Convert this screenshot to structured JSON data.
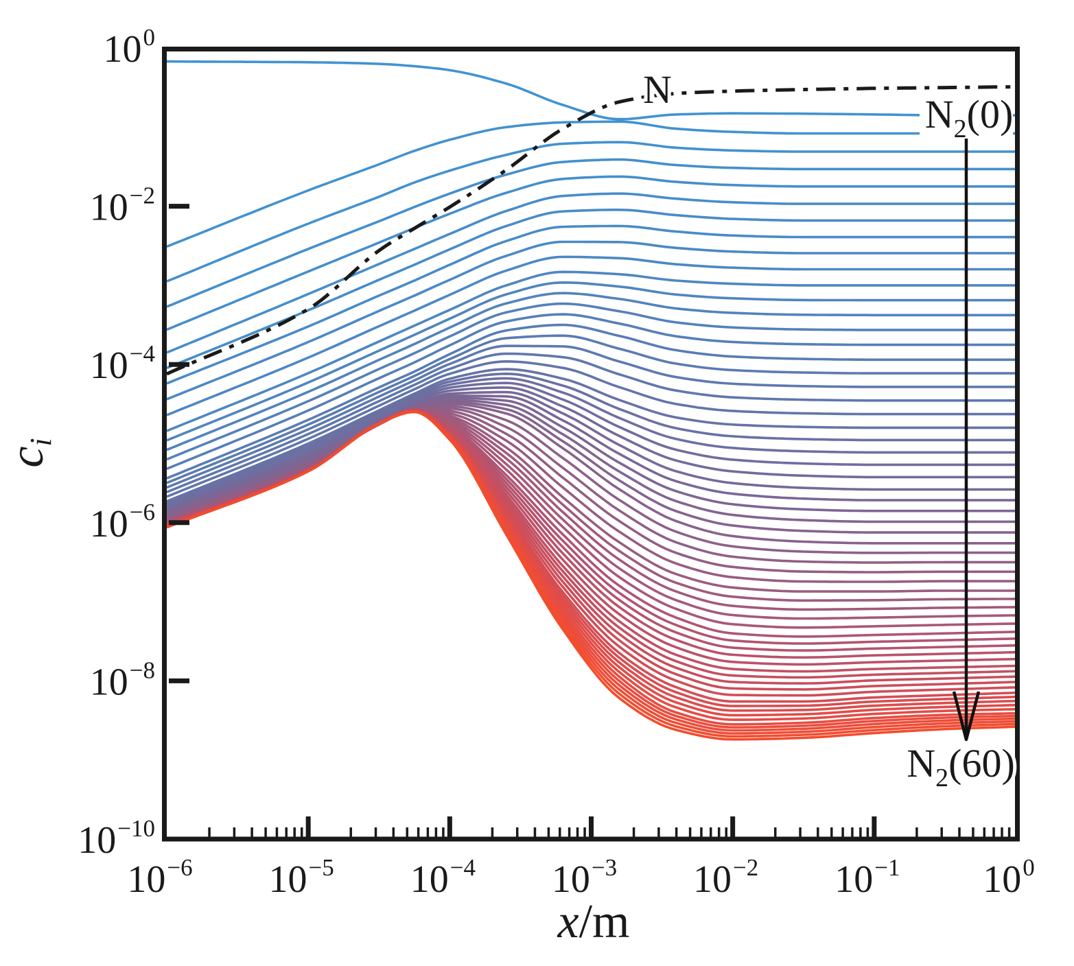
{
  "figure": {
    "background": "#ffffff",
    "frame_color": "#1a1a1a"
  },
  "chart_data": {
    "type": "line",
    "x_axis": {
      "var": "x",
      "sep": "/",
      "unit": "m",
      "scale": "log",
      "range": [
        1e-06,
        1
      ],
      "tick_exponents": [
        -6,
        -5,
        -4,
        -3,
        -2,
        -1,
        0
      ],
      "minor_ticks": "log mantissas 2-9"
    },
    "y_axis": {
      "var": "c",
      "sub": "i",
      "scale": "log",
      "range": [
        1e-10,
        1
      ],
      "tick_exponents": [
        0,
        -2,
        -4,
        -6,
        -8,
        -10
      ]
    },
    "grid": false,
    "legend": "none (in-plot annotations)",
    "levels": {
      "count": 61,
      "min_v": 0,
      "max_v": 60,
      "first_label": "N2(0)",
      "last_label": "N2(60)"
    },
    "interpolation": "values are log10(c) sampled at u_knots = log10(x); intermediate vibrational levels interpolated linearly between anchor levels",
    "u_knots": [
      -6,
      -5,
      -4.5,
      -4.25,
      -4,
      -3.6,
      -3.2,
      -2.8,
      -2.4,
      -2,
      -1.5,
      -1,
      -0.5,
      0
    ],
    "n_atom_curve": {
      "label": "N",
      "style": "dash-dot",
      "color": "#1a1a1a",
      "log10_c": [
        -4.12,
        -3.3,
        -2.56,
        -2.28,
        -2.01,
        -1.54,
        -1.02,
        -0.68,
        -0.575,
        -0.545,
        -0.525,
        -0.51,
        -0.5,
        -0.49
      ]
    },
    "anchor_levels": [
      {
        "v": 0,
        "log10_c": [
          -0.17,
          -0.18,
          -0.2,
          -0.23,
          -0.28,
          -0.45,
          -0.72,
          -0.9,
          -0.84,
          -0.826,
          -0.83,
          -0.84,
          -0.85,
          -0.85
        ]
      },
      {
        "v": 1,
        "log10_c": [
          -2.51,
          -1.8,
          -1.47,
          -1.3,
          -1.16,
          -1.0,
          -0.94,
          -0.93,
          -1.02,
          -1.06,
          -1.08,
          -1.08,
          -1.08,
          -1.08
        ]
      },
      {
        "v": 2,
        "log10_c": [
          -2.95,
          -2.22,
          -1.88,
          -1.7,
          -1.55,
          -1.35,
          -1.21,
          -1.19,
          -1.26,
          -1.295,
          -1.31,
          -1.31,
          -1.31,
          -1.31
        ]
      },
      {
        "v": 3,
        "log10_c": [
          -3.27,
          -2.54,
          -2.19,
          -2.01,
          -1.84,
          -1.6,
          -1.44,
          -1.41,
          -1.48,
          -1.515,
          -1.53,
          -1.53,
          -1.53,
          -1.53
        ]
      },
      {
        "v": 5,
        "log10_c": [
          -3.85,
          -3.11,
          -2.73,
          -2.54,
          -2.35,
          -2.06,
          -1.87,
          -1.84,
          -1.905,
          -1.95,
          -1.97,
          -1.97,
          -1.97,
          -1.97
        ]
      },
      {
        "v": 7,
        "log10_c": [
          -4.24,
          -3.52,
          -3.13,
          -2.94,
          -2.74,
          -2.44,
          -2.26,
          -2.25,
          -2.32,
          -2.37,
          -2.39,
          -2.39,
          -2.39,
          -2.39
        ]
      },
      {
        "v": 10,
        "log10_c": [
          -4.84,
          -4.11,
          -3.71,
          -3.51,
          -3.31,
          -3.0,
          -2.83,
          -2.86,
          -2.94,
          -2.98,
          -3.0,
          -3.0,
          -3.0,
          -3.0
        ]
      },
      {
        "v": 15,
        "log10_c": [
          -5.44,
          -4.7,
          -4.29,
          -4.09,
          -3.87,
          -3.57,
          -3.5,
          -3.64,
          -3.82,
          -3.9,
          -3.93,
          -3.94,
          -3.94,
          -3.94
        ]
      },
      {
        "v": 20,
        "log10_c": [
          -5.73,
          -5.0,
          -4.58,
          -4.37,
          -4.18,
          -4.06,
          -4.18,
          -4.45,
          -4.67,
          -4.76,
          -4.79,
          -4.8,
          -4.8,
          -4.8
        ]
      },
      {
        "v": 25,
        "log10_c": [
          -5.85,
          -5.16,
          -4.72,
          -4.51,
          -4.37,
          -4.35,
          -4.62,
          -5.02,
          -5.35,
          -5.5,
          -5.56,
          -5.58,
          -5.58,
          -5.58
        ]
      },
      {
        "v": 30,
        "log10_c": [
          -5.93,
          -5.26,
          -4.76,
          -4.56,
          -4.5,
          -4.62,
          -5.06,
          -5.58,
          -5.98,
          -6.17,
          -6.24,
          -6.26,
          -6.26,
          -6.26
        ]
      },
      {
        "v": 35,
        "log10_c": [
          -5.98,
          -5.31,
          -4.75,
          -4.57,
          -4.65,
          -5.05,
          -5.68,
          -6.25,
          -6.65,
          -6.82,
          -6.87,
          -6.87,
          -6.86,
          -6.86
        ]
      },
      {
        "v": 40,
        "log10_c": [
          -6.01,
          -5.33,
          -4.74,
          -4.57,
          -4.77,
          -5.4,
          -6.15,
          -6.8,
          -7.2,
          -7.4,
          -7.44,
          -7.42,
          -7.4,
          -7.38
        ]
      },
      {
        "v": 45,
        "log10_c": [
          -6.03,
          -5.34,
          -4.74,
          -4.58,
          -4.84,
          -5.65,
          -6.55,
          -7.25,
          -7.67,
          -7.85,
          -7.88,
          -7.85,
          -7.83,
          -7.81
        ]
      },
      {
        "v": 50,
        "log10_c": [
          -6.04,
          -5.34,
          -4.74,
          -4.59,
          -4.89,
          -5.87,
          -6.88,
          -7.65,
          -8.08,
          -8.26,
          -8.26,
          -8.21,
          -8.18,
          -8.15
        ]
      },
      {
        "v": 55,
        "log10_c": [
          -6.05,
          -5.35,
          -4.75,
          -4.59,
          -4.92,
          -6.02,
          -7.12,
          -7.95,
          -8.4,
          -8.55,
          -8.53,
          -8.47,
          -8.43,
          -8.41
        ]
      },
      {
        "v": 60,
        "log10_c": [
          -6.06,
          -5.35,
          -4.75,
          -4.6,
          -4.95,
          -6.15,
          -7.35,
          -8.22,
          -8.62,
          -8.74,
          -8.72,
          -8.66,
          -8.61,
          -8.58
        ]
      }
    ],
    "style": {
      "curve_width": 3.6,
      "n_curve_width": 5,
      "n_curve_dash": "28 12 7 12",
      "color_stops": [
        [
          0,
          "#4193d2"
        ],
        [
          10,
          "#4d87c2"
        ],
        [
          18,
          "#5f77ad"
        ],
        [
          26,
          "#7a6796"
        ],
        [
          34,
          "#975d82"
        ],
        [
          42,
          "#b5536e"
        ],
        [
          48,
          "#cc4e5b"
        ],
        [
          54,
          "#e44c45"
        ],
        [
          58,
          "#ef4d36"
        ],
        [
          60,
          "#f34c2c"
        ]
      ]
    }
  },
  "annotations": {
    "n": {
      "text": "N"
    },
    "n2_first": {
      "base": "N",
      "sub": "2",
      "arg": "(0)"
    },
    "n2_last": {
      "base": "N",
      "sub": "2",
      "arg": "(60)"
    }
  }
}
